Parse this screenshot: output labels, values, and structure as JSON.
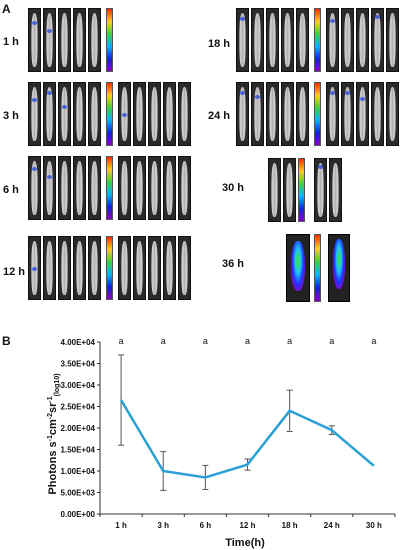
{
  "panel_a": {
    "label": "A",
    "times": [
      "1 h",
      "3 h",
      "6 h",
      "12 h",
      "18 h",
      "24 h",
      "30 h",
      "36 h"
    ]
  },
  "panel_b": {
    "label": "B",
    "ylabel_main": "Photons s",
    "ylabel_parts": [
      "-1",
      "cm",
      "-2",
      "sr",
      "-1",
      "(log10)"
    ],
    "xlabel": "Time(h)"
  },
  "chart_data": {
    "type": "line",
    "categories": [
      "1 h",
      "3 h",
      "6 h",
      "12 h",
      "18 h",
      "24 h",
      "30 h"
    ],
    "values": [
      26500,
      10000,
      8500,
      11500,
      24000,
      19500,
      11200
    ],
    "error": [
      10500,
      4500,
      2800,
      1300,
      4800,
      1000,
      0
    ],
    "significance": [
      "a",
      "a",
      "a",
      "a",
      "a",
      "a",
      "a"
    ],
    "yticks": [
      "0.00E+00",
      "5.00E+03",
      "1.00E+04",
      "1.50E+04",
      "2.00E+04",
      "2.50E+04",
      "3.00E+04",
      "3.50E+04",
      "4.00E+04"
    ],
    "ylim": [
      0,
      40000
    ],
    "xlabel": "Time(h)",
    "line_color": "#2a9fd6"
  }
}
